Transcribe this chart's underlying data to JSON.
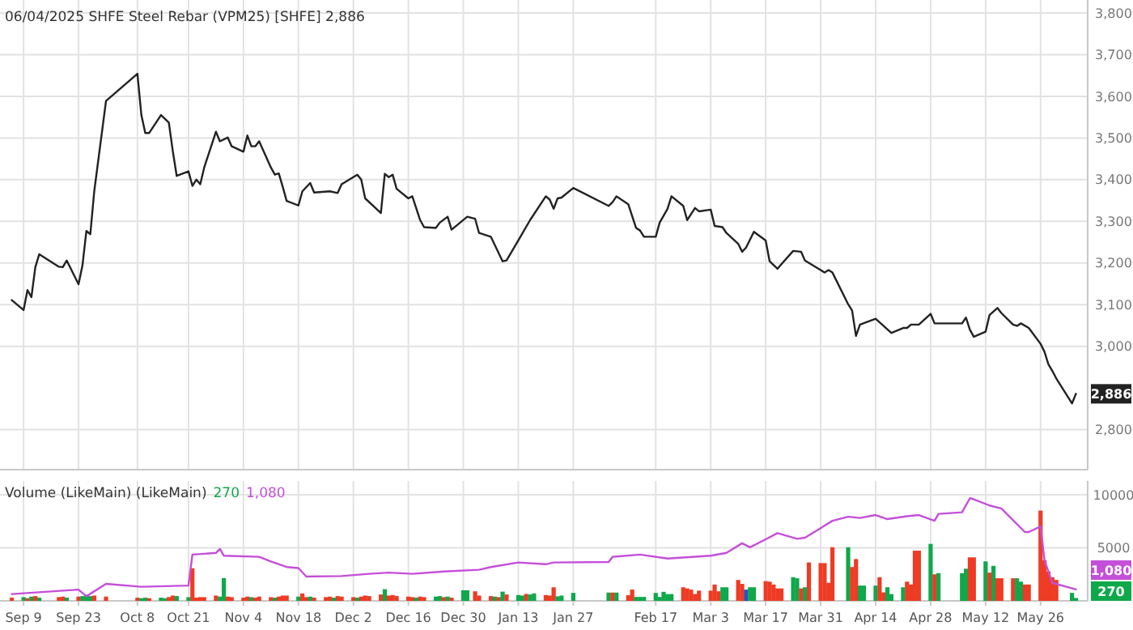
{
  "chart_data": [
    {
      "type": "line",
      "title": "06/04/2025 SHFE Steel Rebar (VPM25) [SHFE] 2,886",
      "xlim": [
        "2024-09-03",
        "2025-06-07"
      ],
      "ylim": [
        2704,
        3800
      ],
      "xticks": [
        {
          "value": "2024-09-09",
          "label": null
        },
        {
          "value": "2024-09-23",
          "label": null
        },
        {
          "value": "2024-10-08",
          "label": null
        },
        {
          "value": "2024-10-21",
          "label": null
        },
        {
          "value": "2024-11-04",
          "label": null
        },
        {
          "value": "2024-11-18",
          "label": null
        },
        {
          "value": "2024-12-02",
          "label": null
        },
        {
          "value": "2024-12-16",
          "label": null
        },
        {
          "value": "2024-12-30",
          "label": null
        },
        {
          "value": "2025-01-13",
          "label": null
        },
        {
          "value": "2025-01-27",
          "label": null
        },
        {
          "value": "2025-02-17",
          "label": null
        },
        {
          "value": "2025-03-03",
          "label": null
        },
        {
          "value": "2025-03-17",
          "label": null
        },
        {
          "value": "2025-03-31",
          "label": null
        },
        {
          "value": "2025-04-14",
          "label": null
        },
        {
          "value": "2025-04-28",
          "label": null
        },
        {
          "value": "2025-05-12",
          "label": null
        },
        {
          "value": "2025-05-26",
          "label": null
        }
      ],
      "yticks": [
        {
          "value": 2800,
          "label": "2,800"
        },
        {
          "value": 3000,
          "label": "3,000"
        },
        {
          "value": 3100,
          "label": "3,100"
        },
        {
          "value": 3200,
          "label": "3,200"
        },
        {
          "value": 3300,
          "label": "3,300"
        },
        {
          "value": 3400,
          "label": "3,400"
        },
        {
          "value": 3500,
          "label": "3,500"
        },
        {
          "value": 3600,
          "label": "3,600"
        },
        {
          "value": 3700,
          "label": "3,700"
        },
        {
          "value": 3800,
          "label": "3,800"
        }
      ],
      "grid": true,
      "tick_labels": "y",
      "annotations": [
        {
          "text": "2,886",
          "y": 2886
        }
      ],
      "series": [
        {
          "color": "#222222",
          "x": [
            "2024-09-06",
            "2024-09-09",
            "2024-09-10",
            "2024-09-11",
            "2024-09-12",
            "2024-09-13",
            "2024-09-18",
            "2024-09-19",
            "2024-09-20",
            "2024-09-23",
            "2024-09-24",
            "2024-09-25",
            "2024-09-26",
            "2024-09-27",
            "2024-09-30",
            "2024-10-08",
            "2024-10-09",
            "2024-10-10",
            "2024-10-11",
            "2024-10-14",
            "2024-10-16",
            "2024-10-17",
            "2024-10-18",
            "2024-10-21",
            "2024-10-22",
            "2024-10-23",
            "2024-10-24",
            "2024-10-25",
            "2024-10-28",
            "2024-10-29",
            "2024-10-31",
            "2024-11-01",
            "2024-11-04",
            "2024-11-05",
            "2024-11-06",
            "2024-11-07",
            "2024-11-08",
            "2024-11-11",
            "2024-11-12",
            "2024-11-13",
            "2024-11-14",
            "2024-11-15",
            "2024-11-18",
            "2024-11-19",
            "2024-11-21",
            "2024-11-22",
            "2024-11-26",
            "2024-11-28",
            "2024-11-29",
            "2024-12-03",
            "2024-12-04",
            "2024-12-05",
            "2024-12-09",
            "2024-12-10",
            "2024-12-11",
            "2024-12-12",
            "2024-12-13",
            "2024-12-16",
            "2024-12-17",
            "2024-12-19",
            "2024-12-20",
            "2024-12-23",
            "2024-12-24",
            "2024-12-26",
            "2024-12-27",
            "2024-12-31",
            "2025-01-02",
            "2025-01-03",
            "2025-01-06",
            "2025-01-09",
            "2025-01-10",
            "2025-01-13",
            "2025-01-16",
            "2025-01-20",
            "2025-01-21",
            "2025-01-22",
            "2025-01-23",
            "2025-01-24",
            "2025-01-27",
            "2025-02-05",
            "2025-02-06",
            "2025-02-07",
            "2025-02-10",
            "2025-02-12",
            "2025-02-13",
            "2025-02-14",
            "2025-02-17",
            "2025-02-18",
            "2025-02-20",
            "2025-02-21",
            "2025-02-24",
            "2025-02-25",
            "2025-02-27",
            "2025-02-28",
            "2025-03-03",
            "2025-03-04",
            "2025-03-06",
            "2025-03-07",
            "2025-03-10",
            "2025-03-11",
            "2025-03-12",
            "2025-03-14",
            "2025-03-17",
            "2025-03-18",
            "2025-03-20",
            "2025-03-21",
            "2025-03-24",
            "2025-03-26",
            "2025-03-27",
            "2025-03-31",
            "2025-04-01",
            "2025-04-02",
            "2025-04-03",
            "2025-04-07",
            "2025-04-08",
            "2025-04-09",
            "2025-04-10",
            "2025-04-14",
            "2025-04-16",
            "2025-04-18",
            "2025-04-21",
            "2025-04-22",
            "2025-04-23",
            "2025-04-25",
            "2025-04-28",
            "2025-04-29",
            "2025-05-06",
            "2025-05-07",
            "2025-05-08",
            "2025-05-09",
            "2025-05-12",
            "2025-05-13",
            "2025-05-15",
            "2025-05-16",
            "2025-05-19",
            "2025-05-20",
            "2025-05-21",
            "2025-05-23",
            "2025-05-26",
            "2025-05-27",
            "2025-05-28",
            "2025-05-29",
            "2025-05-30",
            "2025-06-03",
            "2025-06-04"
          ],
          "values": [
            3111,
            3087,
            3135,
            3118,
            3190,
            3221,
            3191,
            3190,
            3206,
            3149,
            3194,
            3277,
            3269,
            3372,
            3589,
            3654,
            3555,
            3512,
            3512,
            3555,
            3537,
            3469,
            3409,
            3420,
            3385,
            3400,
            3389,
            3429,
            3515,
            3492,
            3501,
            3480,
            3467,
            3506,
            3480,
            3480,
            3492,
            3429,
            3412,
            3415,
            3383,
            3349,
            3338,
            3372,
            3392,
            3369,
            3372,
            3368,
            3389,
            3412,
            3400,
            3355,
            3320,
            3414,
            3406,
            3412,
            3378,
            3355,
            3360,
            3303,
            3286,
            3284,
            3297,
            3311,
            3280,
            3311,
            3306,
            3272,
            3263,
            3204,
            3206,
            3254,
            3303,
            3360,
            3352,
            3330,
            3355,
            3357,
            3380,
            3337,
            3346,
            3360,
            3341,
            3284,
            3278,
            3263,
            3263,
            3297,
            3330,
            3360,
            3337,
            3303,
            3332,
            3324,
            3328,
            3289,
            3286,
            3272,
            3246,
            3227,
            3237,
            3275,
            3254,
            3204,
            3186,
            3197,
            3229,
            3227,
            3206,
            3183,
            3177,
            3183,
            3177,
            3101,
            3086,
            3025,
            3052,
            3066,
            3049,
            3032,
            3044,
            3044,
            3052,
            3052,
            3078,
            3055,
            3055,
            3069,
            3040,
            3023,
            3035,
            3075,
            3092,
            3080,
            3052,
            3049,
            3055,
            3044,
            3006,
            2987,
            2957,
            2941,
            2923,
            2863,
            2886
          ]
        }
      ]
    },
    {
      "type": "bar",
      "title": "Volume (LikeMain)  (LikeMain)",
      "xlim": [
        "2024-09-03",
        "2025-06-07"
      ],
      "ylim": [
        0,
        11300
      ],
      "xticks": [
        {
          "value": "2024-09-09",
          "label": "Sep 9"
        },
        {
          "value": "2024-09-23",
          "label": "Sep 23"
        },
        {
          "value": "2024-10-08",
          "label": "Oct 8"
        },
        {
          "value": "2024-10-21",
          "label": "Oct 21"
        },
        {
          "value": "2024-11-04",
          "label": "Nov 4"
        },
        {
          "value": "2024-11-18",
          "label": "Nov 18"
        },
        {
          "value": "2024-12-02",
          "label": "Dec 2"
        },
        {
          "value": "2024-12-16",
          "label": "Dec 16"
        },
        {
          "value": "2024-12-30",
          "label": "Dec 30"
        },
        {
          "value": "2025-01-13",
          "label": "Jan 13"
        },
        {
          "value": "2025-01-27",
          "label": "Jan 27"
        },
        {
          "value": "2025-02-17",
          "label": "Feb 17"
        },
        {
          "value": "2025-03-03",
          "label": "Mar 3"
        },
        {
          "value": "2025-03-17",
          "label": "Mar 17"
        },
        {
          "value": "2025-03-31",
          "label": "Mar 31"
        },
        {
          "value": "2025-04-14",
          "label": "Apr 14"
        },
        {
          "value": "2025-04-28",
          "label": "Apr 28"
        },
        {
          "value": "2025-05-12",
          "label": "May 12"
        },
        {
          "value": "2025-05-26",
          "label": "May 26"
        }
      ],
      "yticks": [
        5000,
        10000
      ],
      "grid": true,
      "annotations": [
        "270",
        "1,080",
        "270",
        "1,080"
      ],
      "series": [
        {
          "x": [
            "2024-09-06",
            "2024-09-09",
            "2024-09-10",
            "2024-09-11",
            "2024-09-12",
            "2024-09-13",
            "2024-09-18",
            "2024-09-19",
            "2024-09-20",
            "2024-09-23",
            "2024-09-24",
            "2024-09-25",
            "2024-09-26",
            "2024-09-27",
            "2024-09-30",
            "2024-10-08",
            "2024-10-09",
            "2024-10-10",
            "2024-10-11",
            "2024-10-14",
            "2024-10-15",
            "2024-10-16",
            "2024-10-17",
            "2024-10-18",
            "2024-10-21",
            "2024-10-22",
            "2024-10-23",
            "2024-10-24",
            "2024-10-25",
            "2024-10-28",
            "2024-10-29",
            "2024-10-30",
            "2024-10-31",
            "2024-11-01",
            "2024-11-04",
            "2024-11-05",
            "2024-11-06",
            "2024-11-07",
            "2024-11-08",
            "2024-11-11",
            "2024-11-12",
            "2024-11-13",
            "2024-11-14",
            "2024-11-15",
            "2024-11-18",
            "2024-11-19",
            "2024-11-20",
            "2024-11-21",
            "2024-11-22",
            "2024-11-25",
            "2024-11-26",
            "2024-11-27",
            "2024-11-28",
            "2024-11-29",
            "2024-12-02",
            "2024-12-03",
            "2024-12-04",
            "2024-12-05",
            "2024-12-06",
            "2024-12-09",
            "2024-12-10",
            "2024-12-11",
            "2024-12-12",
            "2024-12-13",
            "2024-12-16",
            "2024-12-17",
            "2024-12-18",
            "2024-12-19",
            "2024-12-20",
            "2024-12-23",
            "2024-12-24",
            "2024-12-25",
            "2024-12-26",
            "2024-12-27",
            "2024-12-30",
            "2024-12-31",
            "2025-01-02",
            "2025-01-03",
            "2025-01-06",
            "2025-01-07",
            "2025-01-08",
            "2025-01-09",
            "2025-01-10",
            "2025-01-13",
            "2025-01-14",
            "2025-01-15",
            "2025-01-16",
            "2025-01-17",
            "2025-01-20",
            "2025-01-21",
            "2025-01-22",
            "2025-01-23",
            "2025-01-24",
            "2025-01-27",
            "2025-02-05",
            "2025-02-06",
            "2025-02-07",
            "2025-02-10",
            "2025-02-11",
            "2025-02-12",
            "2025-02-13",
            "2025-02-14",
            "2025-02-17",
            "2025-02-18",
            "2025-02-19",
            "2025-02-20",
            "2025-02-21",
            "2025-02-24",
            "2025-02-25",
            "2025-02-26",
            "2025-02-27",
            "2025-02-28",
            "2025-03-03",
            "2025-03-04",
            "2025-03-05",
            "2025-03-06",
            "2025-03-07",
            "2025-03-10",
            "2025-03-11",
            "2025-03-12",
            "2025-03-13",
            "2025-03-14",
            "2025-03-17",
            "2025-03-18",
            "2025-03-19",
            "2025-03-20",
            "2025-03-21",
            "2025-03-24",
            "2025-03-25",
            "2025-03-26",
            "2025-03-27",
            "2025-03-28",
            "2025-03-31",
            "2025-04-01",
            "2025-04-02",
            "2025-04-03",
            "2025-04-07",
            "2025-04-08",
            "2025-04-09",
            "2025-04-10",
            "2025-04-11",
            "2025-04-14",
            "2025-04-15",
            "2025-04-16",
            "2025-04-17",
            "2025-04-18",
            "2025-04-21",
            "2025-04-22",
            "2025-04-23",
            "2025-04-24",
            "2025-04-25",
            "2025-04-28",
            "2025-04-29",
            "2025-04-30",
            "2025-05-06",
            "2025-05-07",
            "2025-05-08",
            "2025-05-09",
            "2025-05-12",
            "2025-05-13",
            "2025-05-14",
            "2025-05-15",
            "2025-05-16",
            "2025-05-19",
            "2025-05-20",
            "2025-05-21",
            "2025-05-22",
            "2025-05-23",
            "2025-05-26",
            "2025-05-27",
            "2025-05-28",
            "2025-05-29",
            "2025-05-30",
            "2025-06-03",
            "2025-06-04"
          ],
          "values": [
            300,
            350,
            250,
            400,
            450,
            300,
            350,
            400,
            300,
            400,
            450,
            600,
            450,
            500,
            400,
            300,
            250,
            300,
            250,
            300,
            250,
            350,
            500,
            450,
            350,
            3070,
            300,
            350,
            350,
            500,
            400,
            2150,
            400,
            350,
            300,
            400,
            350,
            300,
            400,
            350,
            300,
            400,
            500,
            500,
            400,
            700,
            350,
            400,
            300,
            350,
            400,
            300,
            450,
            400,
            350,
            300,
            400,
            500,
            450,
            600,
            1100,
            500,
            550,
            450,
            400,
            350,
            300,
            400,
            350,
            400,
            450,
            350,
            400,
            300,
            1000,
            1000,
            900,
            500,
            450,
            400,
            350,
            870,
            600,
            550,
            500,
            650,
            600,
            700,
            550,
            500,
            1280,
            430,
            500,
            750,
            780,
            780,
            780,
            530,
            1060,
            370,
            370,
            370,
            750,
            370,
            850,
            640,
            640,
            1280,
            1170,
            1060,
            640,
            960,
            960,
            1540,
            900,
            1280,
            1280,
            1970,
            1600,
            1060,
            1280,
            1280,
            1860,
            1810,
            1540,
            1170,
            1170,
            2230,
            2130,
            1170,
            1280,
            3620,
            3560,
            3560,
            1700,
            5050,
            5050,
            3190,
            3940,
            1440,
            1440,
            1440,
            2230,
            800,
            1280,
            640,
            1280,
            1810,
            1540,
            4730,
            4730,
            5370,
            2500,
            2610,
            2610,
            3030,
            4100,
            4100,
            3720,
            2660,
            3300,
            2130,
            2130,
            2130,
            2130,
            1810,
            1540,
            1540,
            8510,
            3830,
            2770,
            2230,
            1970,
            750,
            270
          ],
          "colors": [
            "#ee3b24",
            "#0fa84b",
            "#ee3b24",
            "#0fa84b",
            "#ee3b24",
            "#0fa84b",
            "#ee3b24",
            "#ee3b24",
            "#0fa84b",
            "#ee3b24",
            "#0fa84b",
            "#0fa84b",
            "#0fa84b",
            "#ee3b24",
            "#ee3b24",
            "#ee3b24",
            "#0fa84b",
            "#0fa84b",
            "#ee3b24",
            "#0fa84b",
            "#0fa84b",
            "#ee3b24",
            "#ee3b24",
            "#0fa84b",
            "#0fa84b",
            "#ee3b24",
            "#ee3b24",
            "#ee3b24",
            "#ee3b24",
            "#ee3b24",
            "#0fa84b",
            "#0fa84b",
            "#ee3b24",
            "#ee3b24",
            "#ee3b24",
            "#ee3b24",
            "#0fa84b",
            "#ee3b24",
            "#ee3b24",
            "#ee3b24",
            "#0fa84b",
            "#ee3b24",
            "#ee3b24",
            "#ee3b24",
            "#0fa84b",
            "#ee3b24",
            "#ee3b24",
            "#0fa84b",
            "#ee3b24",
            "#ee3b24",
            "#ee3b24",
            "#0fa84b",
            "#ee3b24",
            "#ee3b24",
            "#ee3b24",
            "#0fa84b",
            "#ee3b24",
            "#ee3b24",
            "#ee3b24",
            "#ee3b24",
            "#0fa84b",
            "#ee3b24",
            "#ee3b24",
            "#ee3b24",
            "#ee3b24",
            "#ee3b24",
            "#0fa84b",
            "#ee3b24",
            "#ee3b24",
            "#0fa84b",
            "#0fa84b",
            "#ee3b24",
            "#0fa84b",
            "#ee3b24",
            "#0fa84b",
            "#0fa84b",
            "#ee3b24",
            "#ee3b24",
            "#ee3b24",
            "#0fa84b",
            "#ee3b24",
            "#0fa84b",
            "#ee3b24",
            "#0fa84b",
            "#0fa84b",
            "#ee3b24",
            "#0fa84b",
            "#0fa84b",
            "#ee3b24",
            "#ee3b24",
            "#ee3b24",
            "#0fa84b",
            "#0fa84b",
            "#0fa84b",
            "#0fa84b",
            "#ee3b24",
            "#0fa84b",
            "#ee3b24",
            "#ee3b24",
            "#0fa84b",
            "#0fa84b",
            "#0fa84b",
            "#0fa84b",
            "#0fa84b",
            "#0fa84b",
            "#0fa84b",
            "#0fa84b",
            "#ee3b24",
            "#ee3b24",
            "#ee3b24",
            "#ee3b24",
            "#ee3b24",
            "#ee3b24",
            "#ee3b24",
            "#ee3b24",
            "#0fa84b",
            "#0fa84b",
            "#ee3b24",
            "#ee3b24",
            "#2f4fc0",
            "#0fa84b",
            "#0fa84b",
            "#ee3b24",
            "#ee3b24",
            "#ee3b24",
            "#ee3b24",
            "#ee3b24",
            "#0fa84b",
            "#0fa84b",
            "#ee3b24",
            "#0fa84b",
            "#ee3b24",
            "#ee3b24",
            "#ee3b24",
            "#ee3b24",
            "#ee3b24",
            "#0fa84b",
            "#ee3b24",
            "#ee3b24",
            "#0fa84b",
            "#0fa84b",
            "#0fa84b",
            "#ee3b24",
            "#ee3b24",
            "#0fa84b",
            "#0fa84b",
            "#0fa84b",
            "#ee3b24",
            "#ee3b24",
            "#ee3b24",
            "#ee3b24",
            "#0fa84b",
            "#ee3b24",
            "#0fa84b",
            "#0fa84b",
            "#0fa84b",
            "#ee3b24",
            "#ee3b24",
            "#0fa84b",
            "#ee3b24",
            "#0fa84b",
            "#ee3b24",
            "#ee3b24",
            "#ee3b24",
            "#0fa84b",
            "#0fa84b",
            "#ee3b24",
            "#ee3b24",
            "#ee3b24",
            "#ee3b24",
            "#ee3b24",
            "#ee3b24",
            "#ee3b24",
            "#0fa84b",
            "#0fa84b"
          ]
        },
        {
          "type": "line",
          "color": "#c44fd8",
          "x": [
            "2024-09-06",
            "2024-09-23",
            "2024-09-25",
            "2024-09-30",
            "2024-10-09",
            "2024-10-21",
            "2024-10-22",
            "2024-10-28",
            "2024-10-29",
            "2024-10-30",
            "2024-11-08",
            "2024-11-11",
            "2024-11-15",
            "2024-11-18",
            "2024-11-20",
            "2024-11-29",
            "2024-12-06",
            "2024-12-11",
            "2024-12-17",
            "2024-12-25",
            "2025-01-03",
            "2025-01-06",
            "2025-01-13",
            "2025-01-20",
            "2025-01-22",
            "2025-02-05",
            "2025-02-06",
            "2025-02-13",
            "2025-02-20",
            "2025-03-03",
            "2025-03-07",
            "2025-03-11",
            "2025-03-13",
            "2025-03-17",
            "2025-03-20",
            "2025-03-25",
            "2025-03-27",
            "2025-03-31",
            "2025-04-03",
            "2025-04-07",
            "2025-04-10",
            "2025-04-14",
            "2025-04-17",
            "2025-04-22",
            "2025-04-25",
            "2025-04-29",
            "2025-04-30",
            "2025-05-06",
            "2025-05-08",
            "2025-05-09",
            "2025-05-13",
            "2025-05-16",
            "2025-05-22",
            "2025-05-23",
            "2025-05-26",
            "2025-05-27",
            "2025-05-29",
            "2025-06-04"
          ],
          "values": [
            640,
            1060,
            430,
            1600,
            1330,
            1440,
            4360,
            4520,
            4890,
            4260,
            4150,
            3720,
            3190,
            3090,
            2290,
            2340,
            2550,
            2660,
            2550,
            2770,
            2930,
            3190,
            3620,
            3450,
            3620,
            3670,
            4150,
            4360,
            3990,
            4260,
            4520,
            5430,
            5050,
            5800,
            6380,
            5850,
            5960,
            6860,
            7550,
            7930,
            7820,
            8090,
            7710,
            7980,
            8090,
            7550,
            8200,
            8350,
            9680,
            9580,
            8990,
            8720,
            6490,
            6490,
            7020,
            3830,
            1700,
            1080
          ]
        }
      ]
    }
  ]
}
